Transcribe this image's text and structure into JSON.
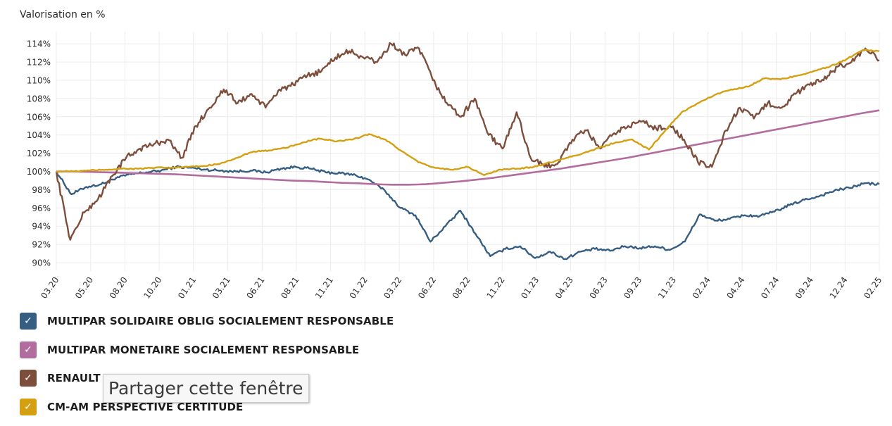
{
  "colors": {
    "solidaire": "#365e82",
    "monetaire": "#b36c9e",
    "renault": "#7d4e3c",
    "cmam": "#d4a011",
    "grid": "#ececec",
    "text": "#2b2b2b"
  },
  "tooltip": {
    "text": "Partager cette fenêtre"
  },
  "legend": {
    "items": [
      {
        "label": "MULTIPAR SOLIDAIRE OBLIG SOCIALEMENT RESPONSABLE",
        "color": "#365e82",
        "checked": true
      },
      {
        "label": "MULTIPAR MONETAIRE SOCIALEMENT RESPONSABLE",
        "color": "#b36c9e",
        "checked": true
      },
      {
        "label": "RENAULT C",
        "color": "#7d4e3c",
        "checked": true
      },
      {
        "label": "CM-AM PERSPECTIVE CERTITUDE",
        "color": "#d4a011",
        "checked": true
      }
    ]
  },
  "chart_data": {
    "type": "line",
    "ylabel": "Valorisation en %",
    "ylim": [
      89,
      115
    ],
    "yticks": [
      90,
      92,
      94,
      96,
      98,
      100,
      102,
      104,
      106,
      108,
      110,
      112,
      114
    ],
    "ytick_suffix": "%",
    "xticks": [
      "03.20",
      "05.20",
      "08.20",
      "10.20",
      "01.21",
      "03.21",
      "06.21",
      "08.21",
      "11.21",
      "01.22",
      "03.22",
      "06.22",
      "08.22",
      "11.22",
      "01.23",
      "04.23",
      "06.23",
      "09.23",
      "11.23",
      "02.24",
      "04.24",
      "07.24",
      "09.24",
      "12.24",
      "02.25"
    ],
    "grid": true,
    "series": [
      {
        "name": "MULTIPAR SOLIDAIRE OBLIG SOCIALEMENT RESPONSABLE",
        "color": "#365e82",
        "values": [
          100,
          97.5,
          98.3,
          98.6,
          99.3,
          99.7,
          99.9,
          100.1,
          100.5,
          100.4,
          100.2,
          100.1,
          100,
          100.1,
          99.9,
          100.3,
          100.5,
          100.3,
          99.9,
          99.8,
          99.6,
          99,
          97.8,
          96,
          95.2,
          92.3,
          94,
          95.7,
          93.2,
          90.7,
          91.5,
          91.8,
          90.5,
          91.2,
          90.4,
          91.2,
          91.5,
          91.3,
          91.8,
          91.6,
          91.8,
          91.4,
          92.3,
          95.3,
          94.6,
          94.8,
          95.2,
          95.1,
          95.6,
          96.3,
          96.9,
          97.3,
          97.9,
          98.2,
          98.7,
          98.6
        ]
      },
      {
        "name": "MULTIPAR MONETAIRE SOCIALEMENT RESPONSABLE",
        "color": "#b36c9e",
        "values": [
          100,
          100,
          99.95,
          99.9,
          99.85,
          99.8,
          99.75,
          99.7,
          99.6,
          99.5,
          99.4,
          99.3,
          99.2,
          99.1,
          99,
          98.95,
          98.85,
          98.75,
          98.7,
          98.6,
          98.55,
          98.55,
          98.6,
          98.75,
          98.9,
          99.1,
          99.3,
          99.55,
          99.8,
          100.05,
          100.3,
          100.6,
          100.9,
          101.2,
          101.5,
          101.85,
          102.2,
          102.55,
          102.9,
          103.25,
          103.6,
          103.95,
          104.3,
          104.65,
          105,
          105.35,
          105.7,
          106.05,
          106.4,
          106.7
        ]
      },
      {
        "name": "RENAULT C",
        "color": "#7d4e3c",
        "values": [
          100,
          92.5,
          95.5,
          97,
          99.5,
          101.5,
          102.5,
          103,
          103.5,
          101.5,
          105,
          107,
          109,
          107.5,
          108.5,
          107,
          109,
          109.5,
          110.5,
          111,
          112.5,
          113.2,
          112.5,
          112,
          114,
          112.8,
          113.5,
          110,
          107.5,
          106,
          108,
          104,
          102.5,
          106.5,
          101.5,
          100.5,
          101,
          103.5,
          104.5,
          102.5,
          104.2,
          105,
          105.5,
          104.7,
          105,
          103.5,
          101,
          100.5,
          104.5,
          107,
          105.8,
          107.5,
          107,
          108.5,
          109.5,
          110,
          111.5,
          112,
          113.5,
          112.2
        ]
      },
      {
        "name": "CM-AM PERSPECTIVE CERTITUDE",
        "color": "#d4a011",
        "values": [
          100,
          100,
          100.1,
          100.2,
          100.3,
          100.3,
          100.4,
          100.4,
          100.5,
          100.6,
          100.9,
          101.5,
          102.2,
          102.3,
          102.6,
          103.2,
          103.6,
          103.3,
          103.5,
          104.1,
          103.5,
          102.2,
          101,
          100.4,
          100.2,
          100.5,
          99.6,
          100.2,
          100.3,
          100.5,
          101,
          101.5,
          102,
          102.6,
          103.2,
          103.5,
          102.4,
          104.5,
          106.5,
          107.5,
          108.4,
          109,
          109.3,
          110.2,
          110.1,
          110.5,
          111,
          111.5,
          112.3,
          113.3,
          113.2
        ]
      }
    ]
  }
}
